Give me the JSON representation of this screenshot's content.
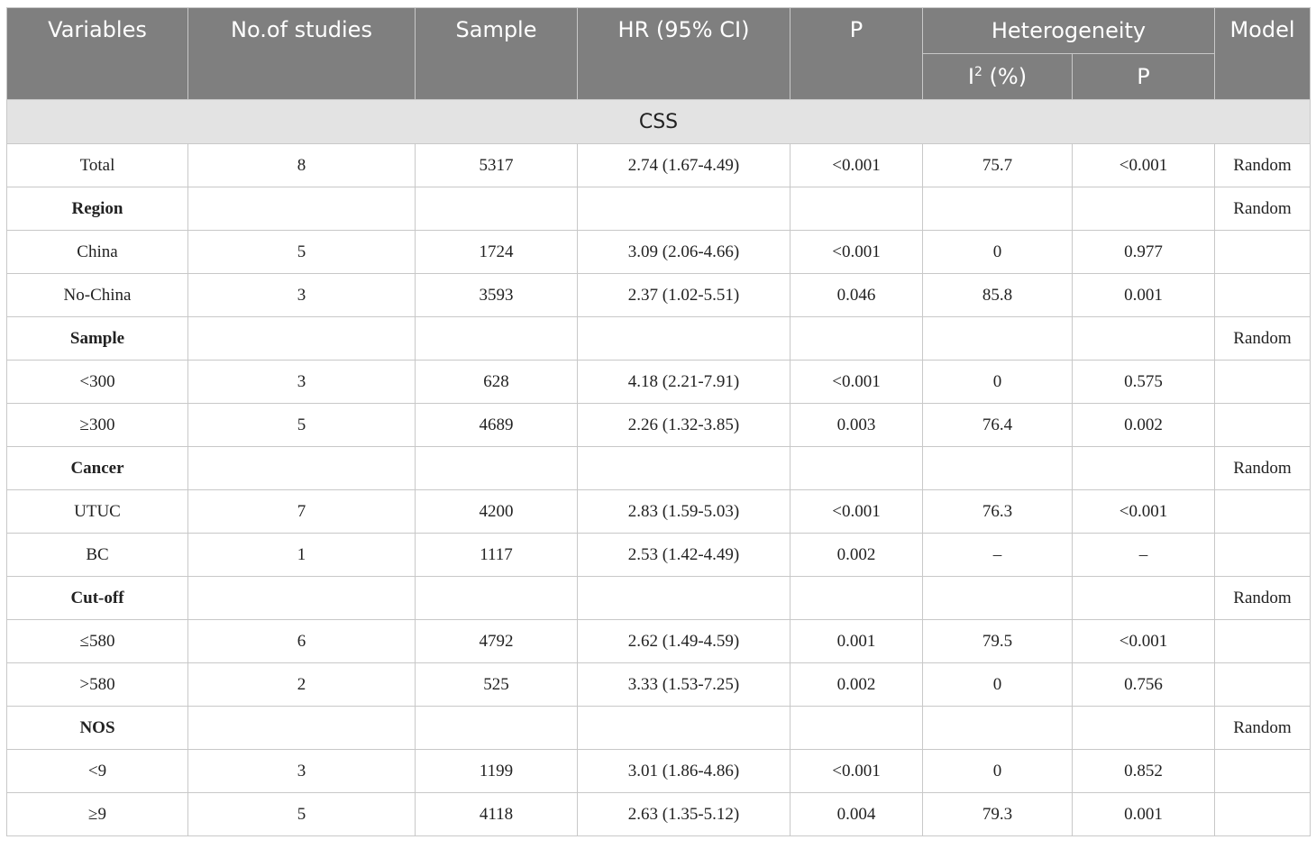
{
  "headers": {
    "variables": "Variables",
    "studies": "No.of studies",
    "sample": "Sample",
    "hr": "HR (95% CI)",
    "p": "P",
    "heterogeneity": "Heterogeneity",
    "i2_base": "I",
    "i2_sup": "2",
    "i2_suffix": " (%)",
    "het_p": "P",
    "model": "Model"
  },
  "section": "CSS",
  "rows": [
    {
      "label": "Total",
      "studies": "8",
      "sample": "5317",
      "hr": "2.74 (1.67-4.49)",
      "p": "<0.001",
      "i2": "75.7",
      "het_p": "<0.001",
      "model": "Random"
    },
    {
      "label": "Region",
      "model": "Random"
    },
    {
      "label": "China",
      "studies": "5",
      "sample": "1724",
      "hr": "3.09 (2.06-4.66)",
      "p": "<0.001",
      "i2": "0",
      "het_p": "0.977",
      "model": ""
    },
    {
      "label": "No-China",
      "studies": "3",
      "sample": "3593",
      "hr": "2.37 (1.02-5.51)",
      "p": "0.046",
      "i2": "85.8",
      "het_p": "0.001",
      "model": ""
    },
    {
      "label": "Sample",
      "model": "Random"
    },
    {
      "label": "<300",
      "studies": "3",
      "sample": "628",
      "hr": "4.18 (2.21-7.91)",
      "p": "<0.001",
      "i2": "0",
      "het_p": "0.575",
      "model": ""
    },
    {
      "label": "≥300",
      "studies": "5",
      "sample": "4689",
      "hr": "2.26 (1.32-3.85)",
      "p": "0.003",
      "i2": "76.4",
      "het_p": "0.002",
      "model": ""
    },
    {
      "label": "Cancer",
      "model": "Random"
    },
    {
      "label": "UTUC",
      "studies": "7",
      "sample": "4200",
      "hr": "2.83 (1.59-5.03)",
      "p": "<0.001",
      "i2": "76.3",
      "het_p": "<0.001",
      "model": ""
    },
    {
      "label": "BC",
      "studies": "1",
      "sample": "1117",
      "hr": "2.53 (1.42-4.49)",
      "p": "0.002",
      "i2": "–",
      "het_p": "–",
      "model": ""
    },
    {
      "label": "Cut-off",
      "model": "Random"
    },
    {
      "label": "≤580",
      "studies": "6",
      "sample": "4792",
      "hr": "2.62 (1.49-4.59)",
      "p": "0.001",
      "i2": "79.5",
      "het_p": "<0.001",
      "model": ""
    },
    {
      "label": ">580",
      "studies": "2",
      "sample": "525",
      "hr": "3.33 (1.53-7.25)",
      "p": "0.002",
      "i2": "0",
      "het_p": "0.756",
      "model": ""
    },
    {
      "label": "NOS",
      "model": "Random"
    },
    {
      "label": "<9",
      "studies": "3",
      "sample": "1199",
      "hr": "3.01 (1.86-4.86)",
      "p": "<0.001",
      "i2": "0",
      "het_p": "0.852",
      "model": ""
    },
    {
      "label": "≥9",
      "studies": "5",
      "sample": "4118",
      "hr": "2.63 (1.35-5.12)",
      "p": "0.004",
      "i2": "79.3",
      "het_p": "0.001",
      "model": ""
    }
  ]
}
